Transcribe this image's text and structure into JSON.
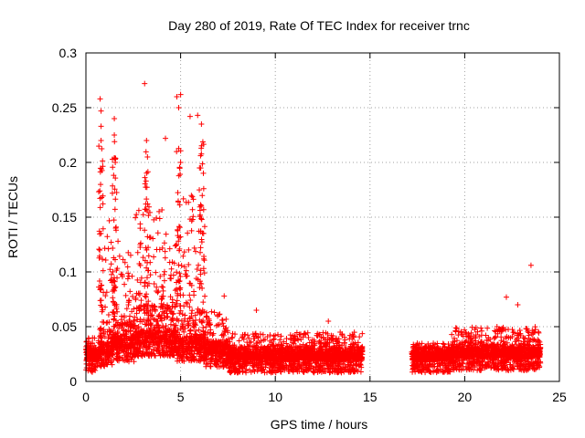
{
  "chart_data": {
    "type": "scatter",
    "title": "Day 280 of 2019, Rate Of TEC Index for receiver trnc",
    "xlabel": "GPS time / hours",
    "ylabel": "ROTI / TECUs",
    "xlim": [
      0,
      25
    ],
    "ylim": [
      0,
      0.3
    ],
    "x_ticks": [
      "0",
      "5",
      "10",
      "15",
      "20",
      "25"
    ],
    "y_ticks": [
      "0",
      "0.05",
      "0.1",
      "0.15",
      "0.2",
      "0.25",
      "0.3"
    ],
    "grid": true,
    "marker": "+",
    "color": "#ff0000",
    "data_gap_hours": [
      14.7,
      17.1
    ],
    "series": [
      {
        "name": "ROTI",
        "peaks": [
          {
            "x": 0.75,
            "y": 0.258
          },
          {
            "x": 0.8,
            "y": 0.247
          },
          {
            "x": 0.8,
            "y": 0.233
          },
          {
            "x": 0.8,
            "y": 0.22
          },
          {
            "x": 1.5,
            "y": 0.24
          },
          {
            "x": 1.5,
            "y": 0.225
          },
          {
            "x": 1.55,
            "y": 0.2
          },
          {
            "x": 3.1,
            "y": 0.272
          },
          {
            "x": 3.2,
            "y": 0.22
          },
          {
            "x": 3.25,
            "y": 0.205
          },
          {
            "x": 4.2,
            "y": 0.222
          },
          {
            "x": 4.8,
            "y": 0.26
          },
          {
            "x": 4.9,
            "y": 0.25
          },
          {
            "x": 5.0,
            "y": 0.262
          },
          {
            "x": 5.5,
            "y": 0.242
          },
          {
            "x": 5.9,
            "y": 0.243
          },
          {
            "x": 6.1,
            "y": 0.235
          },
          {
            "x": 5.0,
            "y": 0.2
          },
          {
            "x": 6.0,
            "y": 0.195
          },
          {
            "x": 7.3,
            "y": 0.078
          },
          {
            "x": 9.0,
            "y": 0.065
          },
          {
            "x": 12.8,
            "y": 0.055
          },
          {
            "x": 22.2,
            "y": 0.077
          },
          {
            "x": 22.8,
            "y": 0.07
          },
          {
            "x": 23.5,
            "y": 0.106
          }
        ],
        "density_profile": [
          {
            "x_from": 0.0,
            "x_to": 0.7,
            "base": 0.02,
            "spread": 0.015,
            "max": 0.04
          },
          {
            "x_from": 0.7,
            "x_to": 1.4,
            "base": 0.025,
            "spread": 0.04,
            "max": 0.15
          },
          {
            "x_from": 1.4,
            "x_to": 2.6,
            "base": 0.03,
            "spread": 0.05,
            "max": 0.13
          },
          {
            "x_from": 2.6,
            "x_to": 4.8,
            "base": 0.035,
            "spread": 0.06,
            "max": 0.16
          },
          {
            "x_from": 4.8,
            "x_to": 6.3,
            "base": 0.03,
            "spread": 0.05,
            "max": 0.17
          },
          {
            "x_from": 6.3,
            "x_to": 7.5,
            "base": 0.025,
            "spread": 0.02,
            "max": 0.065
          },
          {
            "x_from": 7.5,
            "x_to": 14.6,
            "base": 0.02,
            "spread": 0.012,
            "max": 0.045
          },
          {
            "x_from": 17.2,
            "x_to": 19.3,
            "base": 0.02,
            "spread": 0.01,
            "max": 0.035
          },
          {
            "x_from": 19.3,
            "x_to": 24.0,
            "base": 0.022,
            "spread": 0.015,
            "max": 0.05
          }
        ]
      }
    ]
  }
}
